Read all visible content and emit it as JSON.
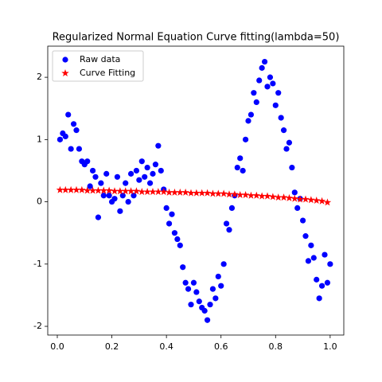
{
  "chart_data": {
    "type": "scatter",
    "title": "Regularized Normal Equation Curve fitting(lambda=50)",
    "xlim": [
      -0.035,
      1.05
    ],
    "ylim": [
      -2.14,
      2.5
    ],
    "xticks": [
      {
        "value": 0,
        "label": "0.0"
      },
      0.2,
      0.4,
      0.6,
      0.8,
      {
        "value": 1,
        "label": "1.0"
      }
    ],
    "yticks": [
      -2,
      -1,
      0,
      1,
      2
    ],
    "legend": "upper left",
    "series": [
      {
        "name": "Raw data",
        "color": "#0000ff",
        "marker": "o",
        "x": [
          0.01,
          0.02,
          0.03,
          0.04,
          0.05,
          0.06,
          0.07,
          0.08,
          0.09,
          0.1,
          0.11,
          0.12,
          0.13,
          0.14,
          0.15,
          0.16,
          0.17,
          0.18,
          0.19,
          0.2,
          0.21,
          0.22,
          0.23,
          0.24,
          0.25,
          0.26,
          0.27,
          0.28,
          0.29,
          0.3,
          0.31,
          0.32,
          0.33,
          0.34,
          0.35,
          0.36,
          0.37,
          0.38,
          0.39,
          0.4,
          0.41,
          0.42,
          0.43,
          0.44,
          0.45,
          0.46,
          0.47,
          0.48,
          0.49,
          0.5,
          0.51,
          0.52,
          0.53,
          0.54,
          0.55,
          0.56,
          0.57,
          0.58,
          0.59,
          0.6,
          0.61,
          0.62,
          0.63,
          0.64,
          0.65,
          0.66,
          0.67,
          0.68,
          0.69,
          0.7,
          0.71,
          0.72,
          0.73,
          0.74,
          0.75,
          0.76,
          0.77,
          0.78,
          0.79,
          0.8,
          0.81,
          0.82,
          0.83,
          0.84,
          0.85,
          0.86,
          0.87,
          0.88,
          0.89,
          0.9,
          0.91,
          0.92,
          0.93,
          0.94,
          0.95,
          0.96,
          0.97,
          0.98,
          0.99,
          1.0
        ],
        "values": [
          1.0,
          1.1,
          1.05,
          1.4,
          0.85,
          1.25,
          1.15,
          0.85,
          0.65,
          0.6,
          0.65,
          0.25,
          0.5,
          0.4,
          -0.25,
          0.3,
          0.1,
          0.45,
          0.1,
          0.0,
          0.05,
          0.4,
          -0.15,
          0.1,
          0.3,
          0.0,
          0.45,
          0.1,
          0.5,
          0.35,
          0.65,
          0.4,
          0.55,
          0.3,
          0.45,
          0.6,
          0.9,
          0.5,
          0.2,
          -0.1,
          -0.35,
          -0.2,
          -0.5,
          -0.6,
          -0.7,
          -1.05,
          -1.3,
          -1.4,
          -1.65,
          -1.3,
          -1.45,
          -1.6,
          -1.7,
          -1.75,
          -1.9,
          -1.65,
          -1.4,
          -1.55,
          -1.2,
          -1.35,
          -1.0,
          -0.35,
          -0.45,
          -0.1,
          0.1,
          0.55,
          0.7,
          0.5,
          1.0,
          1.3,
          1.4,
          1.75,
          1.6,
          1.95,
          2.15,
          2.25,
          1.85,
          2.0,
          1.9,
          1.55,
          1.75,
          1.35,
          1.15,
          0.85,
          0.95,
          0.55,
          0.15,
          -0.1,
          0.05,
          -0.3,
          -0.55,
          -0.95,
          -0.7,
          -0.9,
          -1.25,
          -1.55,
          -1.35,
          -0.85,
          -1.3,
          -1.0
        ]
      },
      {
        "name": "Curve Fitting",
        "color": "#ff0000",
        "marker": "*",
        "x": [
          0.01,
          0.03,
          0.05,
          0.07,
          0.09,
          0.11,
          0.13,
          0.15,
          0.17,
          0.19,
          0.21,
          0.23,
          0.25,
          0.27,
          0.29,
          0.31,
          0.33,
          0.35,
          0.37,
          0.39,
          0.41,
          0.43,
          0.45,
          0.47,
          0.49,
          0.51,
          0.53,
          0.55,
          0.57,
          0.59,
          0.61,
          0.63,
          0.65,
          0.67,
          0.69,
          0.71,
          0.73,
          0.75,
          0.77,
          0.79,
          0.81,
          0.83,
          0.85,
          0.87,
          0.89,
          0.91,
          0.93,
          0.95,
          0.97,
          0.99
        ],
        "values": [
          0.19,
          0.19,
          0.19,
          0.19,
          0.19,
          0.18,
          0.18,
          0.18,
          0.18,
          0.18,
          0.17,
          0.17,
          0.17,
          0.17,
          0.17,
          0.16,
          0.16,
          0.16,
          0.16,
          0.16,
          0.15,
          0.15,
          0.15,
          0.15,
          0.14,
          0.14,
          0.14,
          0.14,
          0.13,
          0.13,
          0.13,
          0.12,
          0.12,
          0.11,
          0.11,
          0.1,
          0.1,
          0.09,
          0.09,
          0.08,
          0.07,
          0.07,
          0.06,
          0.05,
          0.04,
          0.04,
          0.03,
          0.02,
          0.01,
          -0.01
        ]
      }
    ]
  }
}
